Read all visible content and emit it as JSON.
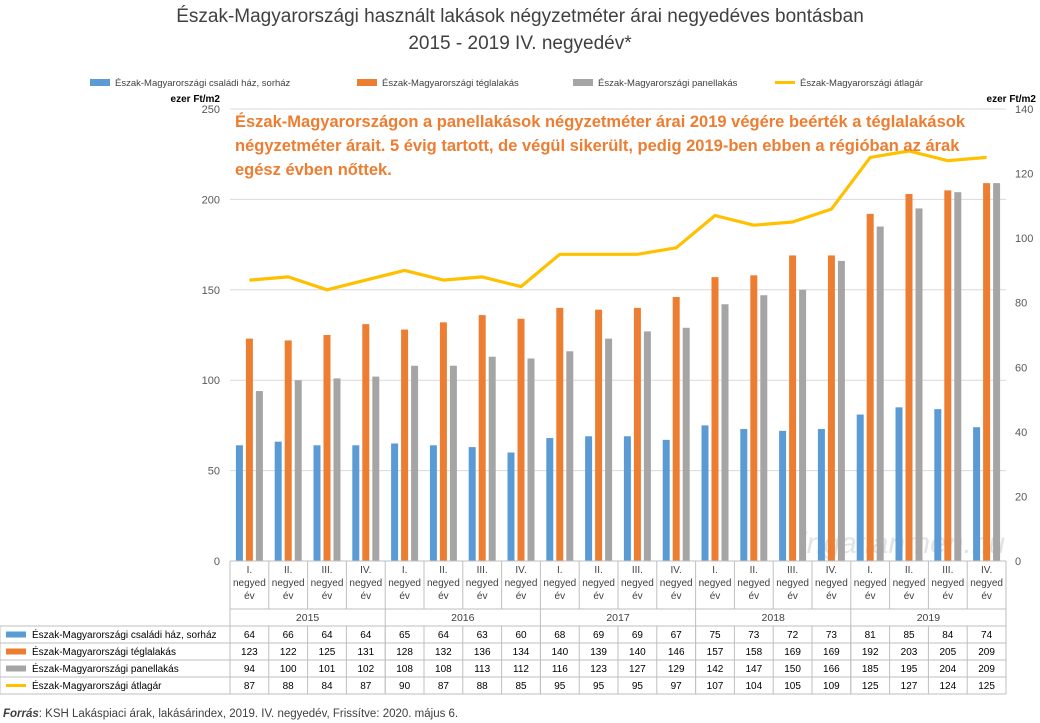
{
  "title_line1": "Észak-Magyarországi használt lakások négyzetméter árai negyedéves bontásban",
  "title_line2": "2015 - 2019 IV. negyedév*",
  "source_label": "Forrás",
  "source_text": ": KSH Lakáspiaci árak, lakásárindex, 2019. IV. negyedév, Frissítve: 2020. május 6.",
  "watermark": "ingatlanmen.hu",
  "chart_data": {
    "type": "bar+line",
    "y_left_label": "ezer Ft/m2",
    "y_right_label": "ezer Ft/m2",
    "y_left_lim": [
      0,
      250
    ],
    "y_left_ticks": [
      0,
      50,
      100,
      150,
      200,
      250
    ],
    "y_right_lim": [
      0,
      140
    ],
    "y_right_ticks": [
      0,
      20,
      40,
      60,
      80,
      100,
      120,
      140
    ],
    "annotation": [
      "Észak-Magyarországon a panellakások négyzetméter árai 2019 végére beérték a téglalakások",
      "négyzetméter árait. 5 évig tartott, de végül sikerült, pedig 2019-ben ebben a régióban az árak",
      "egész évben nőttek."
    ],
    "categories": [
      [
        "I.",
        "negyed",
        "év"
      ],
      [
        "II.",
        "negyed",
        "év"
      ],
      [
        "III.",
        "negyed",
        "év"
      ],
      [
        "IV.",
        "negyed",
        "év"
      ],
      [
        "I.",
        "negyed",
        "év"
      ],
      [
        "II.",
        "negyed",
        "év"
      ],
      [
        "III.",
        "negyed",
        "év"
      ],
      [
        "IV.",
        "negyed",
        "év"
      ],
      [
        "I.",
        "negyed",
        "év"
      ],
      [
        "II.",
        "negyed",
        "év"
      ],
      [
        "III.",
        "negyed",
        "év"
      ],
      [
        "IV.",
        "negyed",
        "év"
      ],
      [
        "I.",
        "negyed",
        "év"
      ],
      [
        "II.",
        "negyed",
        "év"
      ],
      [
        "III.",
        "negyed",
        "év"
      ],
      [
        "IV.",
        "negyed",
        "év"
      ],
      [
        "I.",
        "negyed",
        "év"
      ],
      [
        "II.",
        "negyed",
        "év"
      ],
      [
        "III.",
        "negyed",
        "év"
      ],
      [
        "IV.",
        "negyed",
        "év"
      ]
    ],
    "years": [
      "2015",
      "2016",
      "2017",
      "2018",
      "2019"
    ],
    "series": [
      {
        "name": "Észak-Magyarországi családi ház, sorház",
        "type": "bar",
        "axis": "left",
        "color": "#5B9BD5",
        "values": [
          64,
          66,
          64,
          64,
          65,
          64,
          63,
          60,
          68,
          69,
          69,
          67,
          75,
          73,
          72,
          73,
          81,
          85,
          84,
          74
        ]
      },
      {
        "name": "Észak-Magyarországi téglalakás",
        "type": "bar",
        "axis": "left",
        "color": "#ED7D31",
        "values": [
          123,
          122,
          125,
          131,
          128,
          132,
          136,
          134,
          140,
          139,
          140,
          146,
          157,
          158,
          169,
          169,
          192,
          203,
          205,
          209
        ]
      },
      {
        "name": "Észak-Magyarországi panellakás",
        "type": "bar",
        "axis": "left",
        "color": "#A5A5A5",
        "values": [
          94,
          100,
          101,
          102,
          108,
          108,
          113,
          112,
          116,
          123,
          127,
          129,
          142,
          147,
          150,
          166,
          185,
          195,
          204,
          209
        ]
      },
      {
        "name": "Észak-Magyarországi átlagár",
        "type": "line",
        "axis": "right",
        "color": "#FFC000",
        "values": [
          87,
          88,
          84,
          87,
          90,
          87,
          88,
          85,
          95,
          95,
          95,
          97,
          107,
          104,
          105,
          109,
          125,
          127,
          124,
          125
        ]
      }
    ]
  }
}
